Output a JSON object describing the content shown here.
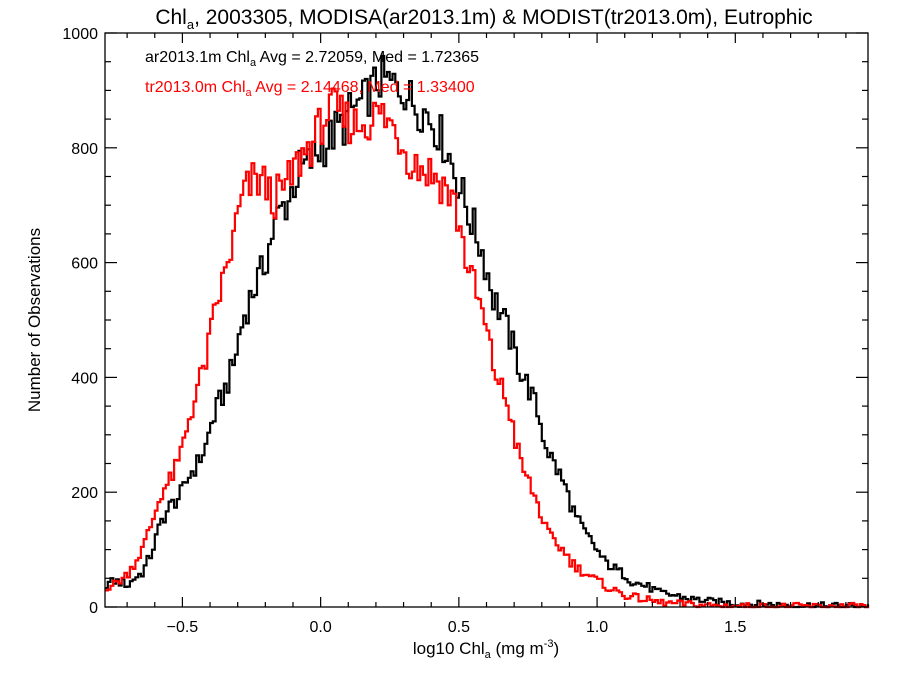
{
  "chart_data": {
    "type": "line",
    "step": true,
    "title": {
      "main": "Chl",
      "sub": "a",
      "rest": ", 2003305, MODISA(ar2013.1m) & MODIST(tr2013.0m), Eutrophic"
    },
    "xlabel": {
      "pre": "log10 Chl",
      "sub": "a",
      "post": " (mg m",
      "sup": "-3",
      "close": ")"
    },
    "ylabel": "Number of Observations",
    "xlim": [
      -0.78,
      1.98
    ],
    "ylim": [
      0,
      1000
    ],
    "x_ticks": [
      -0.5,
      0.0,
      0.5,
      1.0,
      1.5
    ],
    "x_tick_labels": [
      "−0.5",
      "0.0",
      "0.5",
      "1.0",
      "1.5"
    ],
    "y_ticks": [
      0,
      200,
      400,
      600,
      800,
      1000
    ],
    "y_tick_labels": [
      "0",
      "200",
      "400",
      "600",
      "800",
      "1000"
    ],
    "bin_width": 0.01,
    "series": [
      {
        "stats": {
          "pre": "ar2013.1m Chl",
          "sub": "a",
          "post": " Avg = 2.72059, Med = 1.72365"
        },
        "color": "#000000",
        "x": [
          -0.78,
          -0.75,
          -0.72,
          -0.7,
          -0.68,
          -0.65,
          -0.62,
          -0.6,
          -0.58,
          -0.55,
          -0.52,
          -0.5,
          -0.48,
          -0.45,
          -0.42,
          -0.4,
          -0.38,
          -0.35,
          -0.32,
          -0.3,
          -0.28,
          -0.25,
          -0.22,
          -0.2,
          -0.18,
          -0.15,
          -0.12,
          -0.1,
          -0.08,
          -0.05,
          -0.02,
          0.0,
          0.02,
          0.05,
          0.08,
          0.1,
          0.12,
          0.15,
          0.18,
          0.2,
          0.22,
          0.25,
          0.28,
          0.3,
          0.32,
          0.35,
          0.38,
          0.4,
          0.42,
          0.45,
          0.48,
          0.5,
          0.52,
          0.55,
          0.58,
          0.6,
          0.62,
          0.65,
          0.68,
          0.7,
          0.72,
          0.75,
          0.78,
          0.8,
          0.82,
          0.85,
          0.88,
          0.9,
          0.92,
          0.95,
          0.98,
          1.0,
          1.02,
          1.05,
          1.08,
          1.1,
          1.12,
          1.15,
          1.18,
          1.2,
          1.22,
          1.25,
          1.28,
          1.3,
          1.32,
          1.35,
          1.38,
          1.4,
          1.42,
          1.45,
          1.48,
          1.5,
          1.55,
          1.6,
          1.65,
          1.7,
          1.75,
          1.8,
          1.85,
          1.9,
          1.98
        ],
        "y": [
          40,
          45,
          42,
          38,
          50,
          60,
          90,
          120,
          150,
          175,
          190,
          205,
          230,
          250,
          280,
          320,
          345,
          380,
          420,
          470,
          510,
          550,
          580,
          610,
          650,
          690,
          710,
          740,
          760,
          770,
          790,
          800,
          810,
          830,
          840,
          860,
          870,
          880,
          900,
          915,
          920,
          910,
          905,
          900,
          885,
          870,
          860,
          845,
          830,
          800,
          760,
          730,
          700,
          660,
          620,
          580,
          540,
          510,
          470,
          440,
          410,
          380,
          340,
          300,
          270,
          240,
          210,
          180,
          155,
          130,
          110,
          95,
          80,
          70,
          60,
          55,
          45,
          40,
          35,
          30,
          25,
          22,
          20,
          18,
          15,
          13,
          12,
          10,
          9,
          8,
          7,
          6,
          5,
          5,
          4,
          3,
          3,
          2,
          2,
          2,
          2
        ]
      },
      {
        "stats": {
          "pre": "tr2013.0m Chl",
          "sub": "a",
          "post": " Avg = 2.14468, Med = 1.33400"
        },
        "color": "#ff0000",
        "x": [
          -0.78,
          -0.75,
          -0.72,
          -0.7,
          -0.68,
          -0.65,
          -0.62,
          -0.6,
          -0.58,
          -0.55,
          -0.52,
          -0.5,
          -0.48,
          -0.45,
          -0.42,
          -0.4,
          -0.38,
          -0.35,
          -0.32,
          -0.3,
          -0.28,
          -0.25,
          -0.22,
          -0.2,
          -0.18,
          -0.15,
          -0.12,
          -0.1,
          -0.08,
          -0.05,
          -0.02,
          0.0,
          0.02,
          0.05,
          0.08,
          0.1,
          0.12,
          0.15,
          0.18,
          0.2,
          0.22,
          0.25,
          0.28,
          0.3,
          0.32,
          0.35,
          0.38,
          0.4,
          0.42,
          0.45,
          0.48,
          0.5,
          0.52,
          0.55,
          0.58,
          0.6,
          0.62,
          0.65,
          0.68,
          0.7,
          0.72,
          0.75,
          0.78,
          0.8,
          0.82,
          0.85,
          0.88,
          0.9,
          0.92,
          0.95,
          0.98,
          1.0,
          1.02,
          1.05,
          1.08,
          1.1,
          1.12,
          1.15,
          1.18,
          1.2,
          1.22,
          1.25,
          1.28,
          1.3,
          1.32,
          1.35,
          1.38,
          1.4,
          1.42,
          1.45,
          1.48,
          1.5,
          1.55,
          1.6,
          1.65,
          1.7,
          1.75,
          1.8,
          1.85,
          1.9,
          1.98
        ],
        "y": [
          35,
          40,
          50,
          60,
          75,
          100,
          140,
          170,
          200,
          220,
          250,
          290,
          330,
          380,
          430,
          480,
          530,
          580,
          640,
          690,
          720,
          740,
          745,
          730,
          710,
          720,
          740,
          760,
          780,
          800,
          820,
          845,
          860,
          865,
          850,
          845,
          840,
          845,
          850,
          860,
          855,
          840,
          820,
          800,
          780,
          770,
          760,
          755,
          745,
          730,
          700,
          660,
          610,
          560,
          510,
          470,
          420,
          380,
          340,
          290,
          250,
          215,
          180,
          150,
          125,
          110,
          95,
          80,
          70,
          60,
          50,
          45,
          38,
          30,
          25,
          20,
          18,
          15,
          12,
          10,
          8,
          7,
          6,
          5,
          5,
          4,
          3,
          3,
          2,
          2,
          2,
          2,
          1,
          1,
          1,
          1,
          1,
          1,
          1,
          1,
          1
        ]
      }
    ]
  }
}
